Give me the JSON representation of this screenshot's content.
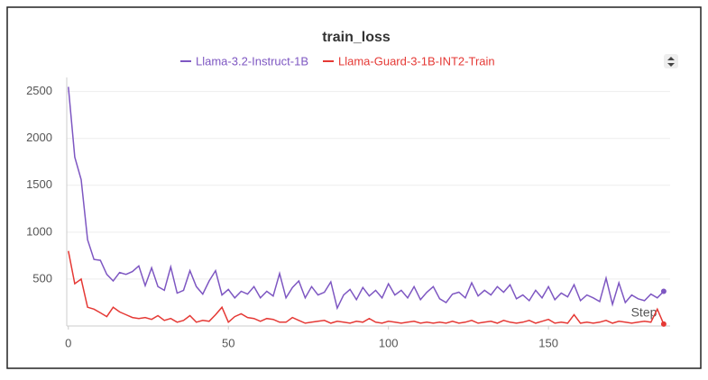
{
  "chart_data": {
    "type": "line",
    "title": "train_loss",
    "x_label": "Step",
    "x": [
      0,
      2,
      4,
      6,
      8,
      10,
      12,
      14,
      16,
      18,
      20,
      22,
      24,
      26,
      28,
      30,
      32,
      34,
      36,
      38,
      40,
      42,
      44,
      46,
      48,
      50,
      52,
      54,
      56,
      58,
      60,
      62,
      64,
      66,
      68,
      70,
      72,
      74,
      76,
      78,
      80,
      82,
      84,
      86,
      88,
      90,
      92,
      94,
      96,
      98,
      100,
      102,
      104,
      106,
      108,
      110,
      112,
      114,
      116,
      118,
      120,
      122,
      124,
      126,
      128,
      130,
      132,
      134,
      136,
      138,
      140,
      142,
      144,
      146,
      148,
      150,
      152,
      154,
      156,
      158,
      160,
      162,
      164,
      166,
      168,
      170,
      172,
      174,
      176,
      178,
      180,
      182,
      184,
      186
    ],
    "series": [
      {
        "name": "Llama-3.2-Instruct-1B",
        "color": "#7e57c2",
        "values": [
          2550,
          1800,
          1560,
          920,
          710,
          700,
          550,
          480,
          570,
          550,
          580,
          640,
          430,
          620,
          420,
          380,
          630,
          350,
          380,
          590,
          420,
          340,
          480,
          590,
          330,
          390,
          300,
          370,
          340,
          420,
          300,
          370,
          320,
          560,
          300,
          410,
          480,
          300,
          420,
          330,
          360,
          470,
          190,
          330,
          390,
          280,
          410,
          320,
          380,
          300,
          450,
          330,
          380,
          300,
          420,
          280,
          360,
          420,
          290,
          250,
          340,
          360,
          300,
          460,
          320,
          380,
          330,
          420,
          360,
          440,
          290,
          330,
          270,
          380,
          300,
          420,
          280,
          350,
          310,
          440,
          270,
          330,
          300,
          260,
          510,
          230,
          460,
          250,
          330,
          290,
          270,
          340,
          300,
          370
        ]
      },
      {
        "name": "Llama-Guard-3-1B-INT2-Train",
        "color": "#e53935",
        "values": [
          800,
          450,
          500,
          200,
          180,
          140,
          100,
          200,
          150,
          120,
          90,
          80,
          90,
          70,
          110,
          60,
          80,
          40,
          60,
          110,
          40,
          60,
          50,
          120,
          200,
          40,
          100,
          130,
          90,
          80,
          50,
          80,
          70,
          40,
          40,
          90,
          60,
          30,
          40,
          50,
          60,
          30,
          50,
          40,
          30,
          50,
          40,
          80,
          40,
          30,
          50,
          40,
          30,
          40,
          50,
          30,
          40,
          30,
          40,
          30,
          50,
          30,
          40,
          60,
          30,
          40,
          50,
          30,
          60,
          40,
          30,
          40,
          60,
          30,
          50,
          70,
          30,
          40,
          30,
          120,
          30,
          40,
          30,
          40,
          60,
          30,
          50,
          40,
          30,
          40,
          50,
          40,
          180,
          20
        ]
      }
    ],
    "xlim": [
      -0.5,
      188
    ],
    "ylim": [
      0,
      2650
    ],
    "xticks": [
      0,
      50,
      100,
      150
    ],
    "yticks": [
      500,
      1000,
      1500,
      2000,
      2500
    ],
    "grid": true
  }
}
